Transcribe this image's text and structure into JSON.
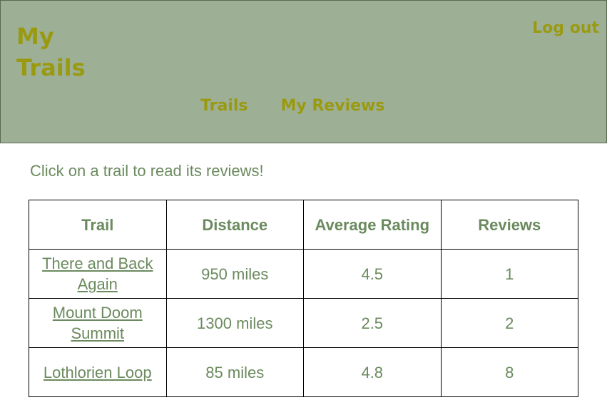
{
  "header": {
    "brand": "My Trails",
    "logout_label": "Log out",
    "nav": [
      {
        "label": "Trails"
      },
      {
        "label": "My Reviews"
      }
    ]
  },
  "main": {
    "intro": "Click on a trail to read its reviews!",
    "table": {
      "columns": [
        "Trail",
        "Distance",
        "Average Rating",
        "Reviews"
      ],
      "rows": [
        {
          "trail": "There and Back Again",
          "distance": "950 miles",
          "rating": "4.5",
          "reviews": "1"
        },
        {
          "trail": "Mount Doom Summit",
          "distance": "1300 miles",
          "rating": "2.5",
          "reviews": "2"
        },
        {
          "trail": "Lothlorien Loop",
          "distance": "85 miles",
          "rating": "4.8",
          "reviews": "8"
        }
      ]
    }
  },
  "colors": {
    "header_bg": "#9db096",
    "brand_text": "#9a9a10",
    "body_text": "#6b8a5e"
  }
}
